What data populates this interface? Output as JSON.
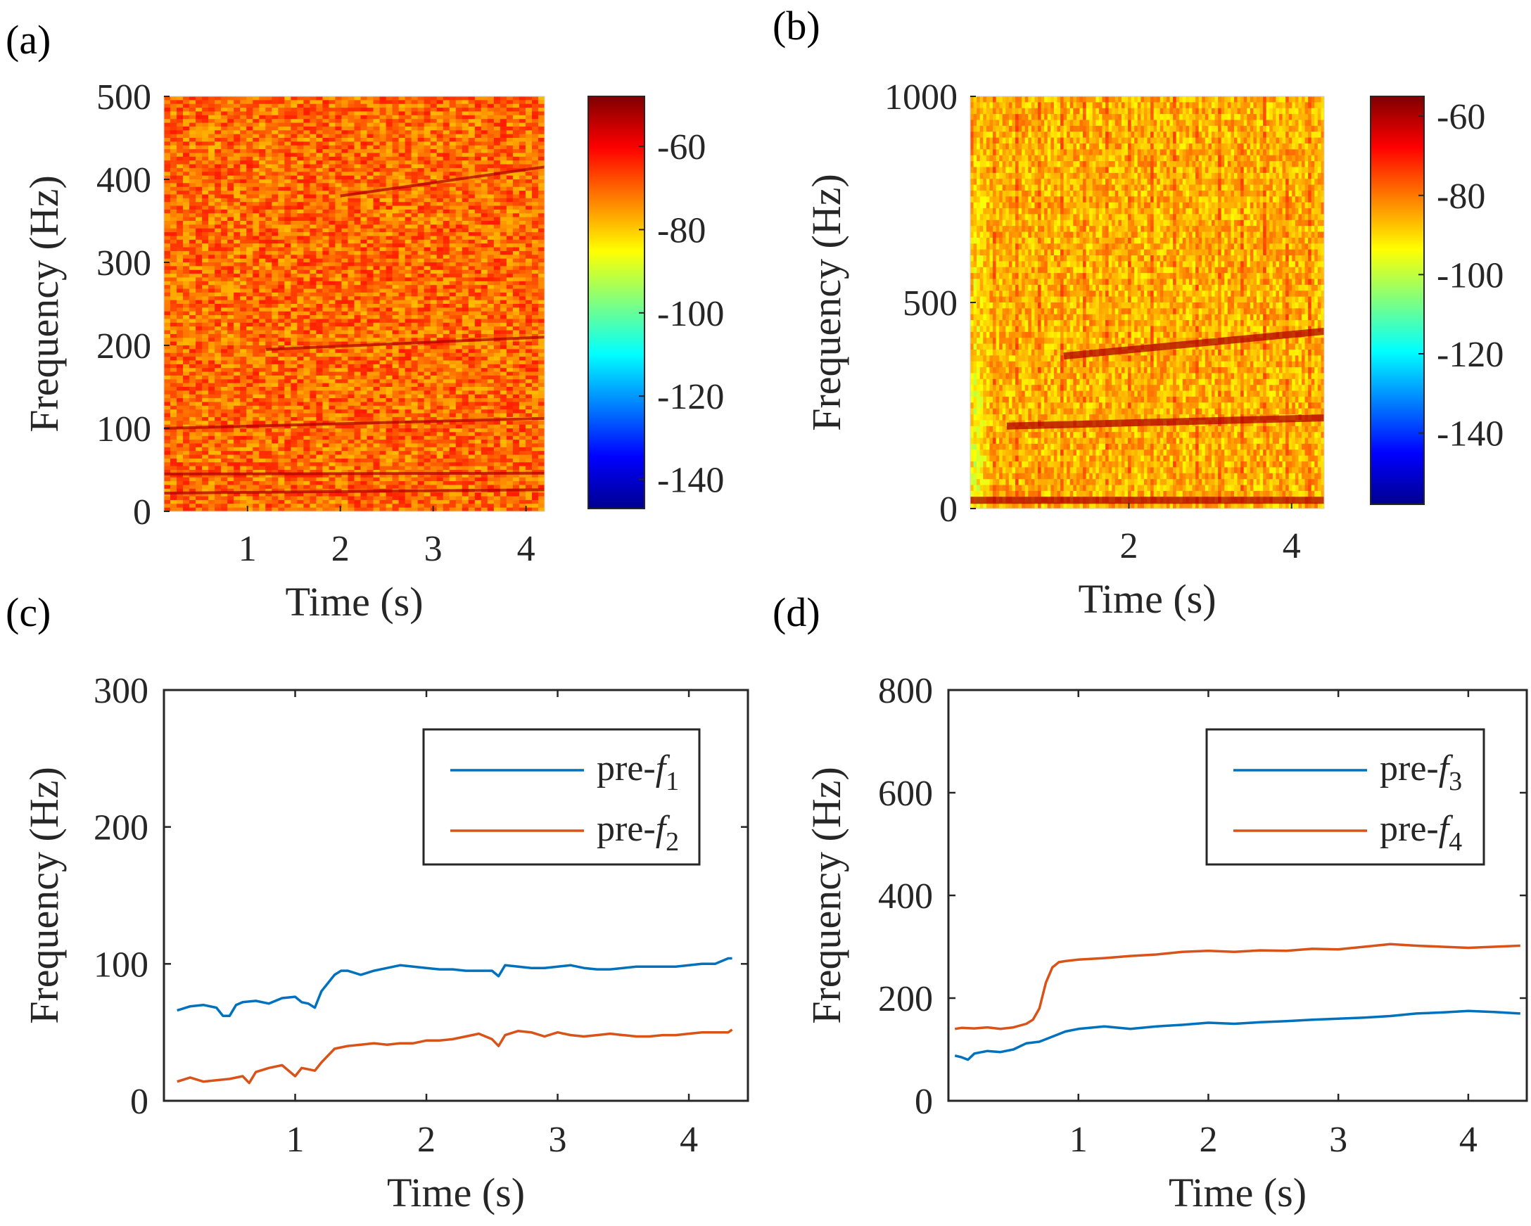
{
  "chart_data": [
    {
      "panel": "(a)",
      "type": "heatmap",
      "xlabel": "Time (s)",
      "ylabel": "Frequency (Hz)",
      "xlim": [
        0.1,
        4.2
      ],
      "ylim": [
        0,
        500
      ],
      "xticks": [
        "1",
        "2",
        "3",
        "4"
      ],
      "xtick_values": [
        1,
        2,
        3,
        4
      ],
      "yticks": [
        "0",
        "100",
        "200",
        "300",
        "400",
        "500"
      ],
      "ytick_values": [
        0,
        100,
        200,
        300,
        400,
        500
      ],
      "colorbar": {
        "range": [
          -147,
          -48
        ],
        "ticks": [
          "-60",
          "-80",
          "-100",
          "-120",
          "-140"
        ],
        "tick_values": [
          -60,
          -80,
          -100,
          -120,
          -140
        ]
      },
      "ridges": [
        {
          "from": [
            0.1,
            22
          ],
          "to": [
            4.2,
            26
          ]
        },
        {
          "from": [
            0.1,
            45
          ],
          "to": [
            4.2,
            46
          ]
        },
        {
          "from": [
            0.1,
            100
          ],
          "to": [
            4.2,
            112
          ]
        },
        {
          "from": [
            1.2,
            195
          ],
          "to": [
            4.2,
            210
          ]
        },
        {
          "from": [
            2.0,
            380
          ],
          "to": [
            4.2,
            415
          ]
        }
      ]
    },
    {
      "panel": "(b)",
      "type": "heatmap",
      "xlabel": "Time (s)",
      "ylabel": "Frequency (Hz)",
      "xlim": [
        0.05,
        4.4
      ],
      "ylim": [
        0,
        1000
      ],
      "xticks": [
        "2",
        "4"
      ],
      "xtick_values": [
        2,
        4
      ],
      "yticks": [
        "0",
        "500",
        "1000"
      ],
      "ytick_values": [
        0,
        500,
        1000
      ],
      "colorbar": {
        "range": [
          -158,
          -55
        ],
        "ticks": [
          "-60",
          "-80",
          "-100",
          "-120",
          "-140"
        ],
        "tick_values": [
          -60,
          -80,
          -100,
          -120,
          -140
        ]
      },
      "ridges": [
        {
          "from": [
            0.05,
            20
          ],
          "to": [
            4.4,
            20
          ]
        },
        {
          "from": [
            0.5,
            200
          ],
          "to": [
            4.4,
            220
          ]
        },
        {
          "from": [
            1.2,
            370
          ],
          "to": [
            4.4,
            430
          ]
        }
      ]
    },
    {
      "panel": "(c)",
      "type": "line",
      "xlabel": "Time (s)",
      "ylabel": "Frequency (Hz)",
      "xlim": [
        0,
        4.45
      ],
      "ylim": [
        0,
        300
      ],
      "xticks": [
        "1",
        "2",
        "3",
        "4"
      ],
      "xtick_values": [
        1,
        2,
        3,
        4
      ],
      "yticks": [
        "0",
        "100",
        "200",
        "300"
      ],
      "ytick_values": [
        0,
        100,
        200,
        300
      ],
      "legend_position": "top-right",
      "series": [
        {
          "name": "pre-f1",
          "label_main": "pre-",
          "label_var": "f",
          "label_sub": "1",
          "color": "#0072bd",
          "x": [
            0.1,
            0.2,
            0.3,
            0.4,
            0.45,
            0.5,
            0.55,
            0.6,
            0.7,
            0.8,
            0.9,
            1.0,
            1.05,
            1.1,
            1.15,
            1.2,
            1.3,
            1.35,
            1.4,
            1.5,
            1.6,
            1.7,
            1.8,
            1.9,
            2.0,
            2.1,
            2.2,
            2.3,
            2.4,
            2.5,
            2.55,
            2.6,
            2.7,
            2.8,
            2.9,
            3.0,
            3.1,
            3.2,
            3.3,
            3.4,
            3.5,
            3.6,
            3.7,
            3.8,
            3.9,
            4.0,
            4.1,
            4.2,
            4.3,
            4.33
          ],
          "y": [
            66,
            69,
            70,
            68,
            62,
            62,
            70,
            72,
            73,
            71,
            75,
            76,
            72,
            71,
            68,
            80,
            92,
            95,
            95,
            92,
            95,
            97,
            99,
            98,
            97,
            96,
            96,
            95,
            95,
            95,
            91,
            99,
            98,
            97,
            97,
            98,
            99,
            97,
            96,
            96,
            97,
            98,
            98,
            98,
            98,
            99,
            100,
            100,
            104,
            104
          ]
        },
        {
          "name": "pre-f2",
          "label_main": "pre-",
          "label_var": "f",
          "label_sub": "2",
          "color": "#d95319",
          "x": [
            0.1,
            0.2,
            0.3,
            0.4,
            0.5,
            0.6,
            0.65,
            0.7,
            0.8,
            0.9,
            1.0,
            1.05,
            1.1,
            1.15,
            1.2,
            1.3,
            1.4,
            1.5,
            1.6,
            1.7,
            1.8,
            1.9,
            2.0,
            2.1,
            2.2,
            2.3,
            2.4,
            2.5,
            2.55,
            2.6,
            2.7,
            2.8,
            2.9,
            3.0,
            3.1,
            3.2,
            3.3,
            3.4,
            3.5,
            3.6,
            3.7,
            3.8,
            3.9,
            4.0,
            4.1,
            4.2,
            4.3,
            4.33
          ],
          "y": [
            14,
            17,
            14,
            15,
            16,
            18,
            13,
            21,
            24,
            26,
            18,
            24,
            23,
            22,
            28,
            38,
            40,
            41,
            42,
            41,
            42,
            42,
            44,
            44,
            45,
            47,
            49,
            45,
            40,
            48,
            51,
            50,
            47,
            50,
            48,
            47,
            48,
            49,
            48,
            47,
            47,
            48,
            48,
            49,
            50,
            50,
            50,
            52
          ]
        }
      ]
    },
    {
      "panel": "(d)",
      "type": "line",
      "xlabel": "Time (s)",
      "ylabel": "Frequency (Hz)",
      "xlim": [
        0,
        4.45
      ],
      "ylim": [
        0,
        800
      ],
      "xticks": [
        "1",
        "2",
        "3",
        "4"
      ],
      "xtick_values": [
        1,
        2,
        3,
        4
      ],
      "yticks": [
        "0",
        "200",
        "400",
        "600",
        "800"
      ],
      "ytick_values": [
        0,
        200,
        400,
        600,
        800
      ],
      "legend_position": "top-right",
      "series": [
        {
          "name": "pre-f3",
          "label_main": "pre-",
          "label_var": "f",
          "label_sub": "3",
          "color": "#0072bd",
          "x": [
            0.05,
            0.1,
            0.15,
            0.2,
            0.3,
            0.4,
            0.5,
            0.6,
            0.7,
            0.8,
            0.9,
            1.0,
            1.2,
            1.4,
            1.6,
            1.8,
            2.0,
            2.2,
            2.4,
            2.6,
            2.8,
            3.0,
            3.2,
            3.4,
            3.6,
            3.8,
            4.0,
            4.2,
            4.4
          ],
          "y": [
            88,
            85,
            80,
            92,
            97,
            95,
            100,
            112,
            115,
            125,
            135,
            140,
            145,
            140,
            145,
            148,
            152,
            150,
            153,
            155,
            158,
            160,
            162,
            165,
            170,
            172,
            175,
            173,
            170
          ]
        },
        {
          "name": "pre-f4",
          "label_main": "pre-",
          "label_var": "f",
          "label_sub": "4",
          "color": "#d95319",
          "x": [
            0.05,
            0.1,
            0.2,
            0.3,
            0.4,
            0.5,
            0.6,
            0.65,
            0.7,
            0.75,
            0.8,
            0.85,
            0.9,
            1.0,
            1.2,
            1.4,
            1.6,
            1.8,
            2.0,
            2.2,
            2.4,
            2.6,
            2.8,
            3.0,
            3.2,
            3.4,
            3.6,
            3.8,
            4.0,
            4.2,
            4.4
          ],
          "y": [
            140,
            142,
            141,
            143,
            140,
            143,
            150,
            158,
            180,
            230,
            260,
            270,
            272,
            275,
            278,
            282,
            285,
            290,
            292,
            290,
            293,
            292,
            296,
            295,
            300,
            305,
            302,
            300,
            298,
            300,
            302
          ]
        }
      ]
    }
  ]
}
